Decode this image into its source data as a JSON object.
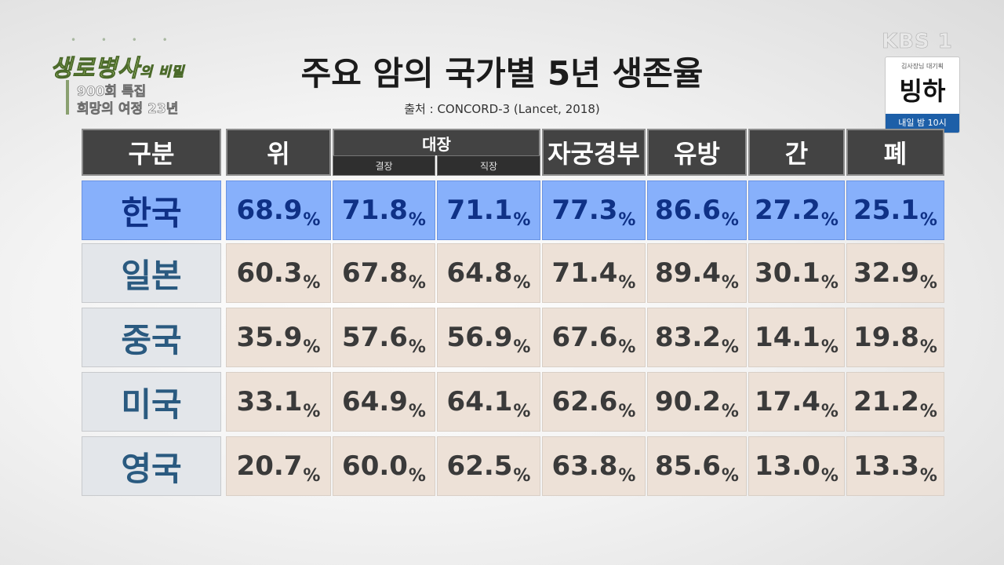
{
  "program": {
    "logo_dots": "• • • •",
    "logo_title": "생로병사",
    "logo_title_small": "의 비밀",
    "subtitle_1": "900회 특집",
    "subtitle_2": "희망의 여정 23년"
  },
  "broadcaster": {
    "logo": "KBS 1",
    "promo_tag": "김사장님 대기획",
    "promo_title": "빙하",
    "promo_time": "내일 밤 10시"
  },
  "chart_data": {
    "type": "table",
    "title": "주요 암의 국가별 5년 생존율",
    "source": "출처 : CONCORD-3 (Lancet, 2018)",
    "corner_label": "구분",
    "columns": [
      {
        "label": "위"
      },
      {
        "label": "대장",
        "sub": [
          "결장",
          "직장"
        ]
      },
      {
        "label": "자궁경부"
      },
      {
        "label": "유방"
      },
      {
        "label": "간"
      },
      {
        "label": "폐"
      }
    ],
    "unit": "%",
    "rows": [
      {
        "country": "한국",
        "highlight": true,
        "values": [
          "68.9",
          "71.8",
          "71.1",
          "77.3",
          "86.6",
          "27.2",
          "25.1"
        ]
      },
      {
        "country": "일본",
        "highlight": false,
        "values": [
          "60.3",
          "67.8",
          "64.8",
          "71.4",
          "89.4",
          "30.1",
          "32.9"
        ]
      },
      {
        "country": "중국",
        "highlight": false,
        "values": [
          "35.9",
          "57.6",
          "56.9",
          "67.6",
          "83.2",
          "14.1",
          "19.8"
        ]
      },
      {
        "country": "미국",
        "highlight": false,
        "values": [
          "33.1",
          "64.9",
          "64.1",
          "62.6",
          "90.2",
          "17.4",
          "21.2"
        ]
      },
      {
        "country": "영국",
        "highlight": false,
        "values": [
          "20.7",
          "60.0",
          "62.5",
          "63.8",
          "85.6",
          "13.0",
          "13.3"
        ]
      }
    ],
    "colors": {
      "header": "#434343",
      "highlight_row": "#87b0fb",
      "highlight_text": "#0f3186",
      "normal_cell": "#ede1d7",
      "row_label": "#e3e6ea",
      "row_label_text": "#2a5a80"
    }
  }
}
